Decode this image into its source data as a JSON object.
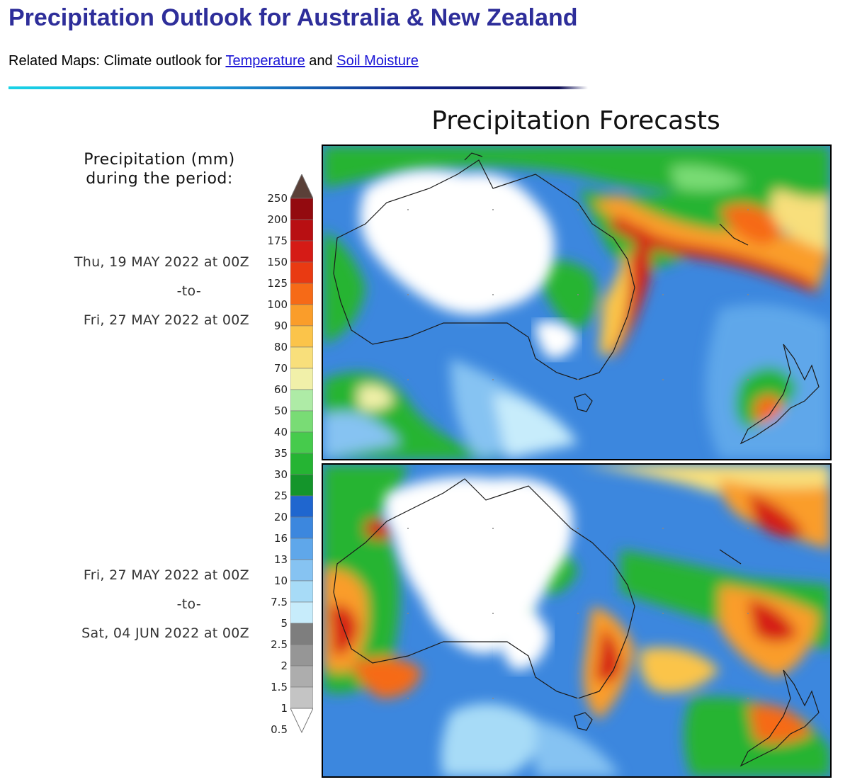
{
  "page": {
    "title": "Precipitation Outlook for Australia & New Zealand",
    "related_prefix": "Related Maps: Climate outlook for",
    "related_link_1": "Temperature",
    "related_mid": "and",
    "related_link_2": "Soil Moisture"
  },
  "figure": {
    "title": "Precipitation Forecasts",
    "legend_title_line1": "Precipitation (mm)",
    "legend_title_line2": "during the period:",
    "periods": [
      {
        "from": "Thu, 19 MAY 2022 at 00Z",
        "sep": "-to-",
        "to": "Fri, 27 MAY 2022 at 00Z"
      },
      {
        "from": "Fri, 27 MAY 2022 at 00Z",
        "sep": "-to-",
        "to": "Sat, 04 JUN 2022 at 00Z"
      }
    ],
    "colorbar": {
      "levels": [
        "0.5",
        "1",
        "1.5",
        "2",
        "2.5",
        "5",
        "7.5",
        "10",
        "13",
        "16",
        "20",
        "25",
        "30",
        "35",
        "40",
        "50",
        "60",
        "70",
        "80",
        "90",
        "100",
        "125",
        "150",
        "175",
        "200",
        "250"
      ],
      "colors": [
        "#d9d9d9",
        "#c4c4c4",
        "#adadad",
        "#969696",
        "#7e7e7e",
        "#c7ecfb",
        "#a7dbf7",
        "#86c3f2",
        "#5fa7ea",
        "#3c87de",
        "#1f66cf",
        "#14952b",
        "#25b433",
        "#46cb4c",
        "#79dc75",
        "#aeeba6",
        "#f1f0a9",
        "#f8df7b",
        "#fbc44a",
        "#fa9d2a",
        "#f66a17",
        "#e93a12",
        "#d51b16",
        "#b80f12",
        "#930a0f",
        "#5a4038"
      ]
    },
    "maps": [
      {
        "name": "Forecast period 1 precipitation map"
      },
      {
        "name": "Forecast period 2 precipitation map"
      }
    ]
  }
}
